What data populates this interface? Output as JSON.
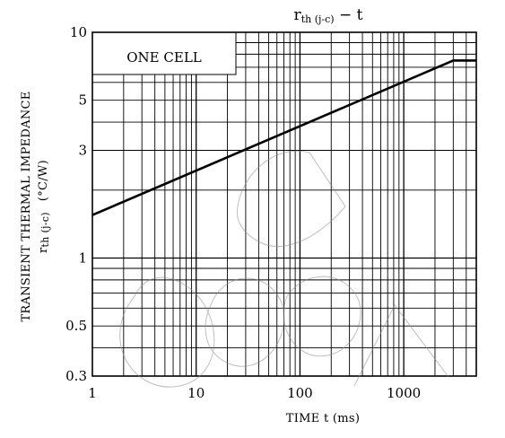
{
  "chart_data": {
    "type": "line",
    "title": {
      "main": "r",
      "sub": "th (j-c)",
      "suffix": "  −  t"
    },
    "xlabel": "TIME   t   (ms)",
    "ylabel": {
      "line1": "TRANSIENT THERMAL IMPEDANCE",
      "sym": "r",
      "sub": "th (j-c)",
      "unit": "(°C/W)"
    },
    "annotation": "ONE CELL",
    "watermark": "Obsolete",
    "x_scale": "log",
    "y_scale": "log",
    "xlim": [
      1,
      5000
    ],
    "ylim": [
      0.3,
      10
    ],
    "x_ticks": [
      {
        "value": 1,
        "label": "1"
      },
      {
        "value": 10,
        "label": "10"
      },
      {
        "value": 100,
        "label": "100"
      },
      {
        "value": 1000,
        "label": "1000"
      }
    ],
    "y_ticks": [
      {
        "value": 0.3,
        "label": "0.3"
      },
      {
        "value": 0.5,
        "label": "0.5"
      },
      {
        "value": 1,
        "label": "1"
      },
      {
        "value": 3,
        "label": "3"
      },
      {
        "value": 5,
        "label": "5"
      },
      {
        "value": 10,
        "label": "10"
      }
    ],
    "grid": true,
    "series": [
      {
        "x": [
          1,
          3000,
          5000
        ],
        "y": [
          1.55,
          7.5,
          7.5
        ]
      }
    ]
  }
}
